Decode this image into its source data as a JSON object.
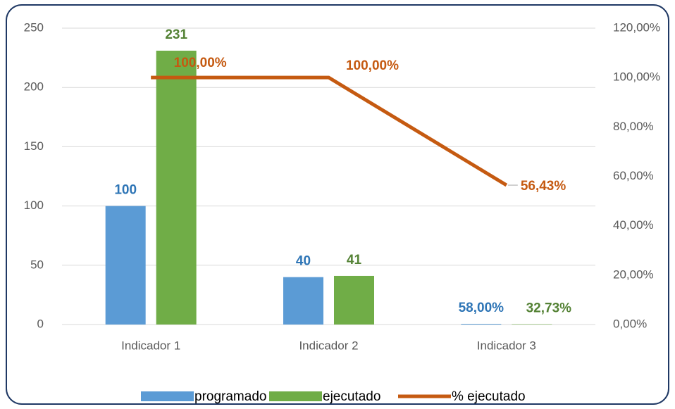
{
  "chart_data": {
    "type": "bar_line",
    "categories": [
      "Indicador 1",
      "Indicador 2",
      "Indicador 3"
    ],
    "series": [
      {
        "name": "programado",
        "color": "#5b9bd5",
        "label_color": "#2e75b6",
        "type": "bar",
        "values": [
          100,
          40,
          0.58
        ],
        "value_labels": [
          "100",
          "40",
          "58,00%"
        ]
      },
      {
        "name": "ejecutado",
        "color": "#70ad47",
        "label_color": "#548235",
        "type": "bar",
        "values": [
          231,
          41,
          0.3273
        ],
        "value_labels": [
          "231",
          "41",
          "32,73%"
        ]
      },
      {
        "name": "% ejecutado",
        "color": "#c55a11",
        "label_color": "#c55a11",
        "type": "line",
        "axis": "y2",
        "values": [
          100,
          100,
          56.43
        ],
        "value_labels": [
          "100,00%",
          "100,00%",
          "56,43%"
        ]
      }
    ],
    "ylim": [
      0,
      250
    ],
    "yticks": [
      0,
      50,
      100,
      150,
      200,
      250
    ],
    "y2lim": [
      0,
      120
    ],
    "y2ticks": [
      {
        "value": 0,
        "label": "0,00%"
      },
      {
        "value": 20,
        "label": "20,00%"
      },
      {
        "value": 40,
        "label": "40,00%"
      },
      {
        "value": 60,
        "label": "60,00%"
      },
      {
        "value": 80,
        "label": "80,00%"
      },
      {
        "value": 100,
        "label": "100,00%"
      },
      {
        "value": 120,
        "label": "120,00%"
      }
    ],
    "grid": true,
    "legend": "bottom"
  }
}
